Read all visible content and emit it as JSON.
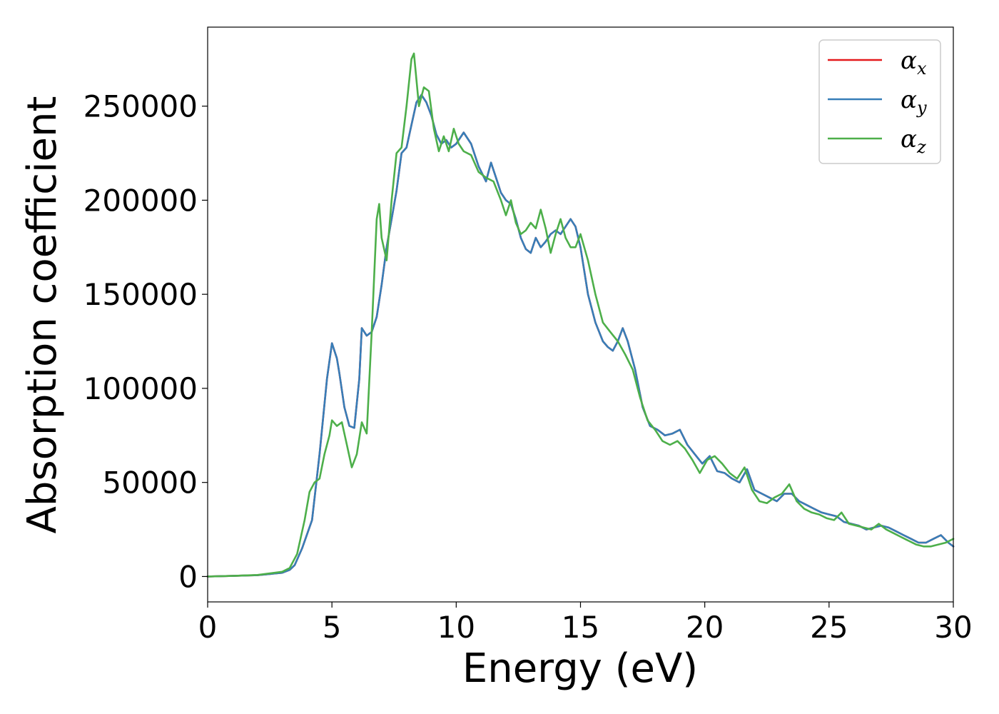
{
  "chart_data": {
    "type": "line",
    "title": "",
    "xlabel": "Energy (eV)",
    "ylabel": "Absorption coefficient",
    "xlim": [
      0,
      30
    ],
    "ylim": [
      -13500,
      292000
    ],
    "xticks": [
      0,
      5,
      10,
      15,
      20,
      25,
      30
    ],
    "xtick_labels": [
      "0",
      "5",
      "10",
      "15",
      "20",
      "25",
      "30"
    ],
    "yticks": [
      0,
      50000,
      100000,
      150000,
      200000,
      250000
    ],
    "ytick_labels": [
      "0",
      "50000",
      "100000",
      "150000",
      "200000",
      "250000"
    ],
    "grid": false,
    "legend_position": "top-right",
    "series": [
      {
        "name": "α",
        "subscript": "x",
        "color": "#e41a1c",
        "x": [
          0,
          1,
          2,
          3,
          3.3,
          3.5,
          3.8,
          4.2,
          4.5,
          4.8,
          5.0,
          5.2,
          5.3,
          5.5,
          5.7,
          5.9,
          6.1,
          6.2,
          6.4,
          6.6,
          6.8,
          7.0,
          7.2,
          7.4,
          7.6,
          7.8,
          8.0,
          8.2,
          8.4,
          8.6,
          8.8,
          9.0,
          9.2,
          9.4,
          9.6,
          9.8,
          10.0,
          10.3,
          10.6,
          10.9,
          11.2,
          11.4,
          11.6,
          11.8,
          12.0,
          12.2,
          12.4,
          12.6,
          12.8,
          13.0,
          13.2,
          13.4,
          13.6,
          13.8,
          14.0,
          14.2,
          14.4,
          14.6,
          14.8,
          15.0,
          15.3,
          15.6,
          15.9,
          16.1,
          16.3,
          16.5,
          16.7,
          16.9,
          17.2,
          17.5,
          17.8,
          18.1,
          18.4,
          18.7,
          19.0,
          19.3,
          19.6,
          19.9,
          20.2,
          20.5,
          20.8,
          21.1,
          21.4,
          21.7,
          22.0,
          22.3,
          22.6,
          22.9,
          23.2,
          23.5,
          23.8,
          24.1,
          24.4,
          24.7,
          25.0,
          25.3,
          25.6,
          25.9,
          26.2,
          26.5,
          26.8,
          27.1,
          27.4,
          27.7,
          28.0,
          28.3,
          28.6,
          28.9,
          29.2,
          29.5,
          29.8,
          30.0
        ],
        "values": [
          0,
          300,
          700,
          2000,
          3500,
          6000,
          15000,
          30000,
          65000,
          105000,
          124000,
          116000,
          108000,
          90000,
          80000,
          79000,
          105000,
          132000,
          128000,
          130000,
          138000,
          155000,
          175000,
          190000,
          205000,
          225000,
          228000,
          240000,
          252000,
          256000,
          252000,
          245000,
          235000,
          230000,
          232000,
          228000,
          230000,
          236000,
          230000,
          218000,
          210000,
          220000,
          212000,
          204000,
          200000,
          198000,
          190000,
          180000,
          174000,
          172000,
          180000,
          175000,
          178000,
          182000,
          184000,
          182000,
          186000,
          190000,
          186000,
          175000,
          150000,
          135000,
          125000,
          122000,
          120000,
          125000,
          132000,
          125000,
          110000,
          90000,
          80000,
          78000,
          75000,
          76000,
          78000,
          70000,
          65000,
          60000,
          64000,
          56000,
          55000,
          52000,
          50000,
          57000,
          46000,
          44000,
          42000,
          40000,
          44000,
          44000,
          40000,
          38000,
          36000,
          34000,
          33000,
          32000,
          29000,
          28000,
          27000,
          25000,
          26000,
          27000,
          26000,
          24000,
          22000,
          20000,
          18000,
          18000,
          20000,
          22000,
          18000,
          16000
        ]
      },
      {
        "name": "α",
        "subscript": "y",
        "color": "#377eb8",
        "x": [
          0,
          1,
          2,
          3,
          3.3,
          3.5,
          3.8,
          4.2,
          4.5,
          4.8,
          5.0,
          5.2,
          5.3,
          5.5,
          5.7,
          5.9,
          6.1,
          6.2,
          6.4,
          6.6,
          6.8,
          7.0,
          7.2,
          7.4,
          7.6,
          7.8,
          8.0,
          8.2,
          8.4,
          8.6,
          8.8,
          9.0,
          9.2,
          9.4,
          9.6,
          9.8,
          10.0,
          10.3,
          10.6,
          10.9,
          11.2,
          11.4,
          11.6,
          11.8,
          12.0,
          12.2,
          12.4,
          12.6,
          12.8,
          13.0,
          13.2,
          13.4,
          13.6,
          13.8,
          14.0,
          14.2,
          14.4,
          14.6,
          14.8,
          15.0,
          15.3,
          15.6,
          15.9,
          16.1,
          16.3,
          16.5,
          16.7,
          16.9,
          17.2,
          17.5,
          17.8,
          18.1,
          18.4,
          18.7,
          19.0,
          19.3,
          19.6,
          19.9,
          20.2,
          20.5,
          20.8,
          21.1,
          21.4,
          21.7,
          22.0,
          22.3,
          22.6,
          22.9,
          23.2,
          23.5,
          23.8,
          24.1,
          24.4,
          24.7,
          25.0,
          25.3,
          25.6,
          25.9,
          26.2,
          26.5,
          26.8,
          27.1,
          27.4,
          27.7,
          28.0,
          28.3,
          28.6,
          28.9,
          29.2,
          29.5,
          29.8,
          30.0
        ],
        "values": [
          0,
          300,
          700,
          2000,
          3500,
          6000,
          15000,
          30000,
          65000,
          105000,
          124000,
          116000,
          108000,
          90000,
          80000,
          79000,
          105000,
          132000,
          128000,
          130000,
          138000,
          155000,
          175000,
          190000,
          205000,
          225000,
          228000,
          240000,
          252000,
          256000,
          252000,
          245000,
          235000,
          230000,
          232000,
          228000,
          230000,
          236000,
          230000,
          218000,
          210000,
          220000,
          212000,
          204000,
          200000,
          198000,
          190000,
          180000,
          174000,
          172000,
          180000,
          175000,
          178000,
          182000,
          184000,
          182000,
          186000,
          190000,
          186000,
          175000,
          150000,
          135000,
          125000,
          122000,
          120000,
          125000,
          132000,
          125000,
          110000,
          90000,
          80000,
          78000,
          75000,
          76000,
          78000,
          70000,
          65000,
          60000,
          64000,
          56000,
          55000,
          52000,
          50000,
          57000,
          46000,
          44000,
          42000,
          40000,
          44000,
          44000,
          40000,
          38000,
          36000,
          34000,
          33000,
          32000,
          29000,
          28000,
          27000,
          25000,
          26000,
          27000,
          26000,
          24000,
          22000,
          20000,
          18000,
          18000,
          20000,
          22000,
          18000,
          16000
        ]
      },
      {
        "name": "α",
        "subscript": "z",
        "color": "#4daf4a",
        "x": [
          0,
          1,
          2,
          3,
          3.3,
          3.6,
          3.9,
          4.1,
          4.3,
          4.5,
          4.7,
          4.9,
          5.0,
          5.2,
          5.4,
          5.6,
          5.8,
          6.0,
          6.2,
          6.4,
          6.6,
          6.8,
          6.9,
          7.0,
          7.2,
          7.4,
          7.6,
          7.8,
          8.0,
          8.2,
          8.3,
          8.5,
          8.7,
          8.9,
          9.1,
          9.3,
          9.5,
          9.7,
          9.9,
          10.1,
          10.3,
          10.6,
          10.9,
          11.2,
          11.5,
          11.8,
          12.0,
          12.2,
          12.4,
          12.6,
          12.8,
          13.0,
          13.2,
          13.4,
          13.6,
          13.8,
          14.0,
          14.2,
          14.4,
          14.6,
          14.8,
          15.0,
          15.3,
          15.6,
          15.9,
          16.2,
          16.5,
          16.8,
          17.1,
          17.4,
          17.7,
          18.0,
          18.3,
          18.6,
          18.9,
          19.2,
          19.5,
          19.8,
          20.1,
          20.4,
          20.7,
          21.0,
          21.3,
          21.6,
          21.9,
          22.2,
          22.5,
          22.8,
          23.1,
          23.4,
          23.7,
          24.0,
          24.3,
          24.6,
          24.9,
          25.2,
          25.5,
          25.8,
          26.1,
          26.4,
          26.7,
          27.0,
          27.3,
          27.6,
          27.9,
          28.2,
          28.5,
          28.8,
          29.1,
          29.4,
          29.7,
          30.0
        ],
        "values": [
          0,
          300,
          800,
          2500,
          4500,
          12000,
          30000,
          45000,
          50000,
          52000,
          65000,
          75000,
          83000,
          80000,
          82000,
          70000,
          58000,
          65000,
          82000,
          76000,
          130000,
          190000,
          198000,
          180000,
          168000,
          200000,
          225000,
          228000,
          250000,
          275000,
          278000,
          250000,
          260000,
          258000,
          238000,
          226000,
          234000,
          226000,
          238000,
          230000,
          226000,
          224000,
          215000,
          212000,
          210000,
          200000,
          192000,
          200000,
          188000,
          182000,
          184000,
          188000,
          185000,
          195000,
          185000,
          172000,
          182000,
          190000,
          180000,
          175000,
          175000,
          182000,
          168000,
          150000,
          135000,
          130000,
          125000,
          118000,
          110000,
          95000,
          83000,
          78000,
          72000,
          70000,
          72000,
          68000,
          62000,
          55000,
          62000,
          64000,
          60000,
          55000,
          52000,
          58000,
          46000,
          40000,
          39000,
          42000,
          44000,
          49000,
          40000,
          36000,
          34000,
          33000,
          31000,
          30000,
          34000,
          28000,
          27000,
          26000,
          25000,
          28000,
          25000,
          23000,
          21000,
          19000,
          17000,
          16000,
          16000,
          17000,
          18000,
          20000
        ]
      }
    ]
  },
  "colors": {
    "alpha_x": "#e41a1c",
    "alpha_y": "#377eb8",
    "alpha_z": "#4daf4a",
    "axis": "#000000"
  }
}
